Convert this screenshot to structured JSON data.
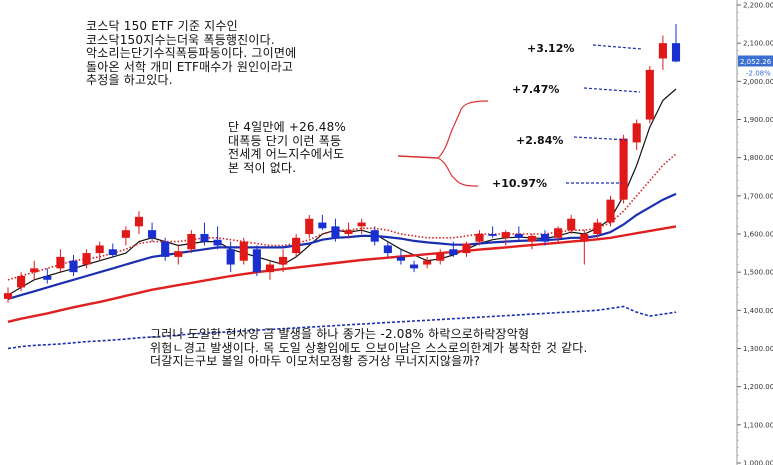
{
  "chart_data": {
    "type": "candlestick",
    "y_axis": {
      "ticks": [
        "2,200.00",
        "2,100.00",
        "2,000.00",
        "1,900.00",
        "1,800.00",
        "1,700.00",
        "1,600.00",
        "1,500.00",
        "1,400.00",
        "1,300.00",
        "1,200.00",
        "1,100.00",
        "1,000.00"
      ],
      "ylim": [
        1000,
        2200
      ],
      "position": "right"
    },
    "last_price_label": "2,052.26",
    "last_change_label": "-2.08%",
    "candles": [
      {
        "o": 1430,
        "h": 1460,
        "l": 1420,
        "c": 1445
      },
      {
        "o": 1460,
        "h": 1500,
        "l": 1450,
        "c": 1490
      },
      {
        "o": 1500,
        "h": 1530,
        "l": 1480,
        "c": 1510
      },
      {
        "o": 1490,
        "h": 1510,
        "l": 1470,
        "c": 1480
      },
      {
        "o": 1510,
        "h": 1560,
        "l": 1500,
        "c": 1540
      },
      {
        "o": 1530,
        "h": 1545,
        "l": 1490,
        "c": 1500
      },
      {
        "o": 1520,
        "h": 1560,
        "l": 1510,
        "c": 1550
      },
      {
        "o": 1550,
        "h": 1580,
        "l": 1530,
        "c": 1570
      },
      {
        "o": 1560,
        "h": 1575,
        "l": 1540,
        "c": 1545
      },
      {
        "o": 1590,
        "h": 1620,
        "l": 1570,
        "c": 1610
      },
      {
        "o": 1620,
        "h": 1660,
        "l": 1600,
        "c": 1645
      },
      {
        "o": 1610,
        "h": 1630,
        "l": 1580,
        "c": 1590
      },
      {
        "o": 1580,
        "h": 1590,
        "l": 1530,
        "c": 1540
      },
      {
        "o": 1540,
        "h": 1570,
        "l": 1520,
        "c": 1555
      },
      {
        "o": 1560,
        "h": 1610,
        "l": 1550,
        "c": 1600
      },
      {
        "o": 1600,
        "h": 1630,
        "l": 1570,
        "c": 1580
      },
      {
        "o": 1585,
        "h": 1620,
        "l": 1560,
        "c": 1570
      },
      {
        "o": 1560,
        "h": 1580,
        "l": 1500,
        "c": 1520
      },
      {
        "o": 1530,
        "h": 1590,
        "l": 1520,
        "c": 1580
      },
      {
        "o": 1560,
        "h": 1570,
        "l": 1490,
        "c": 1500
      },
      {
        "o": 1500,
        "h": 1530,
        "l": 1480,
        "c": 1520
      },
      {
        "o": 1520,
        "h": 1560,
        "l": 1500,
        "c": 1540
      },
      {
        "o": 1550,
        "h": 1600,
        "l": 1540,
        "c": 1590
      },
      {
        "o": 1600,
        "h": 1650,
        "l": 1590,
        "c": 1640
      },
      {
        "o": 1630,
        "h": 1650,
        "l": 1610,
        "c": 1615
      },
      {
        "o": 1620,
        "h": 1640,
        "l": 1580,
        "c": 1590
      },
      {
        "o": 1600,
        "h": 1630,
        "l": 1590,
        "c": 1610
      },
      {
        "o": 1620,
        "h": 1640,
        "l": 1600,
        "c": 1630
      },
      {
        "o": 1610,
        "h": 1620,
        "l": 1570,
        "c": 1580
      },
      {
        "o": 1570,
        "h": 1580,
        "l": 1540,
        "c": 1550
      },
      {
        "o": 1540,
        "h": 1560,
        "l": 1520,
        "c": 1530
      },
      {
        "o": 1520,
        "h": 1530,
        "l": 1500,
        "c": 1510
      },
      {
        "o": 1520,
        "h": 1540,
        "l": 1510,
        "c": 1530
      },
      {
        "o": 1530,
        "h": 1560,
        "l": 1520,
        "c": 1550
      },
      {
        "o": 1560,
        "h": 1580,
        "l": 1540,
        "c": 1545
      },
      {
        "o": 1550,
        "h": 1580,
        "l": 1540,
        "c": 1575
      },
      {
        "o": 1580,
        "h": 1610,
        "l": 1570,
        "c": 1600
      },
      {
        "o": 1600,
        "h": 1620,
        "l": 1590,
        "c": 1595
      },
      {
        "o": 1590,
        "h": 1610,
        "l": 1570,
        "c": 1605
      },
      {
        "o": 1600,
        "h": 1620,
        "l": 1580,
        "c": 1590
      },
      {
        "o": 1580,
        "h": 1600,
        "l": 1560,
        "c": 1595
      },
      {
        "o": 1600,
        "h": 1610,
        "l": 1570,
        "c": 1580
      },
      {
        "o": 1590,
        "h": 1620,
        "l": 1580,
        "c": 1615
      },
      {
        "o": 1610,
        "h": 1650,
        "l": 1600,
        "c": 1640
      },
      {
        "o": 1580,
        "h": 1610,
        "l": 1520,
        "c": 1600
      },
      {
        "o": 1600,
        "h": 1640,
        "l": 1590,
        "c": 1630
      },
      {
        "o": 1630,
        "h": 1700,
        "l": 1620,
        "c": 1690
      },
      {
        "o": 1690,
        "h": 1860,
        "l": 1680,
        "c": 1850
      },
      {
        "o": 1840,
        "h": 1900,
        "l": 1820,
        "c": 1890
      },
      {
        "o": 1900,
        "h": 2040,
        "l": 1890,
        "c": 2030
      },
      {
        "o": 2060,
        "h": 2120,
        "l": 2030,
        "c": 2100
      },
      {
        "o": 2100,
        "h": 2150,
        "l": 2050,
        "c": 2052
      }
    ],
    "series": [
      {
        "values": [
          1440,
          1460,
          1480,
          1490,
          1500,
          1510,
          1520,
          1530,
          1540,
          1550,
          1580,
          1590,
          1580,
          1570,
          1575,
          1580,
          1580,
          1560,
          1550,
          1540,
          1530,
          1520,
          1540,
          1570,
          1600,
          1610,
          1605,
          1610,
          1600,
          1580,
          1560,
          1545,
          1530,
          1535,
          1545,
          1560,
          1575,
          1585,
          1590,
          1592,
          1590,
          1588,
          1595,
          1605,
          1600,
          1615,
          1640,
          1700,
          1780,
          1880,
          1950,
          1980
        ],
        "style": "black"
      },
      {
        "values": [
          1480,
          1490,
          1500,
          1510,
          1520,
          1530,
          1535,
          1540,
          1550,
          1560,
          1575,
          1580,
          1580,
          1580,
          1585,
          1590,
          1590,
          1585,
          1580,
          1575,
          1570,
          1570,
          1575,
          1585,
          1600,
          1610,
          1610,
          1615,
          1615,
          1610,
          1600,
          1595,
          1590,
          1590,
          1590,
          1595,
          1600,
          1600,
          1600,
          1600,
          1600,
          1600,
          1605,
          1610,
          1610,
          1615,
          1630,
          1660,
          1700,
          1740,
          1780,
          1810
        ],
        "style": "red-dotted"
      },
      {
        "values": [
          1430,
          1440,
          1450,
          1460,
          1470,
          1480,
          1490,
          1500,
          1510,
          1520,
          1530,
          1540,
          1545,
          1550,
          1555,
          1560,
          1565,
          1565,
          1565,
          1565,
          1565,
          1565,
          1570,
          1575,
          1585,
          1590,
          1592,
          1595,
          1595,
          1592,
          1588,
          1582,
          1578,
          1575,
          1572,
          1572,
          1575,
          1578,
          1580,
          1582,
          1583,
          1584,
          1586,
          1590,
          1590,
          1595,
          1605,
          1625,
          1650,
          1670,
          1690,
          1705
        ],
        "style": "blue"
      },
      {
        "values": [
          1370,
          1378,
          1385,
          1392,
          1400,
          1408,
          1415,
          1422,
          1430,
          1438,
          1446,
          1454,
          1460,
          1466,
          1472,
          1478,
          1484,
          1490,
          1495,
          1500,
          1504,
          1508,
          1512,
          1516,
          1520,
          1524,
          1528,
          1532,
          1535,
          1538,
          1541,
          1544,
          1547,
          1550,
          1553,
          1556,
          1559,
          1562,
          1565,
          1568,
          1571,
          1574,
          1577,
          1580,
          1583,
          1586,
          1590,
          1596,
          1602,
          1608,
          1614,
          1620
        ],
        "style": "red"
      }
    ],
    "volume_line": [
      1300,
      1305,
      1308,
      1310,
      1312,
      1315,
      1318,
      1320,
      1322,
      1325,
      1328,
      1330,
      1332,
      1335,
      1338,
      1340,
      1342,
      1344,
      1346,
      1348,
      1350,
      1352,
      1354,
      1356,
      1358,
      1360,
      1362,
      1364,
      1366,
      1368,
      1370,
      1372,
      1374,
      1376,
      1378,
      1380,
      1382,
      1384,
      1386,
      1388,
      1390,
      1392,
      1394,
      1396,
      1398,
      1400,
      1405,
      1410,
      1395,
      1385,
      1390,
      1395
    ],
    "annotations": {
      "top_left": "코스닥 150 ETF 기준 지수인\n코스닥150지수는더욱 폭등행진이다.\n악소리는단기수직폭등파동이다. 그이면에\n돌아온 서학 개미 ETF매수가 원인이라고\n추정을 하고있다.",
      "middle": "단 4일만에 +26.48%\n대폭등 단기 이런 폭등\n전세계 어느지수에서도\n본 적이 없다.",
      "bottom": "그러나 도일한 현사잉 금 발생을 하나 종가는 -2.08% 하락으로하락장악형\n위험ㄴ경고 발생이다. 목 도일 상황임에도 으보이남은 스스로의한계가 봉착한 것 같다.\n더갈지는구보 볼일 아마두 이모처모정황 증거상 무너지지않을까?"
    },
    "percent_labels": [
      "+3.12%",
      "+7.47%",
      "+2.84%",
      "+10.97%"
    ]
  }
}
